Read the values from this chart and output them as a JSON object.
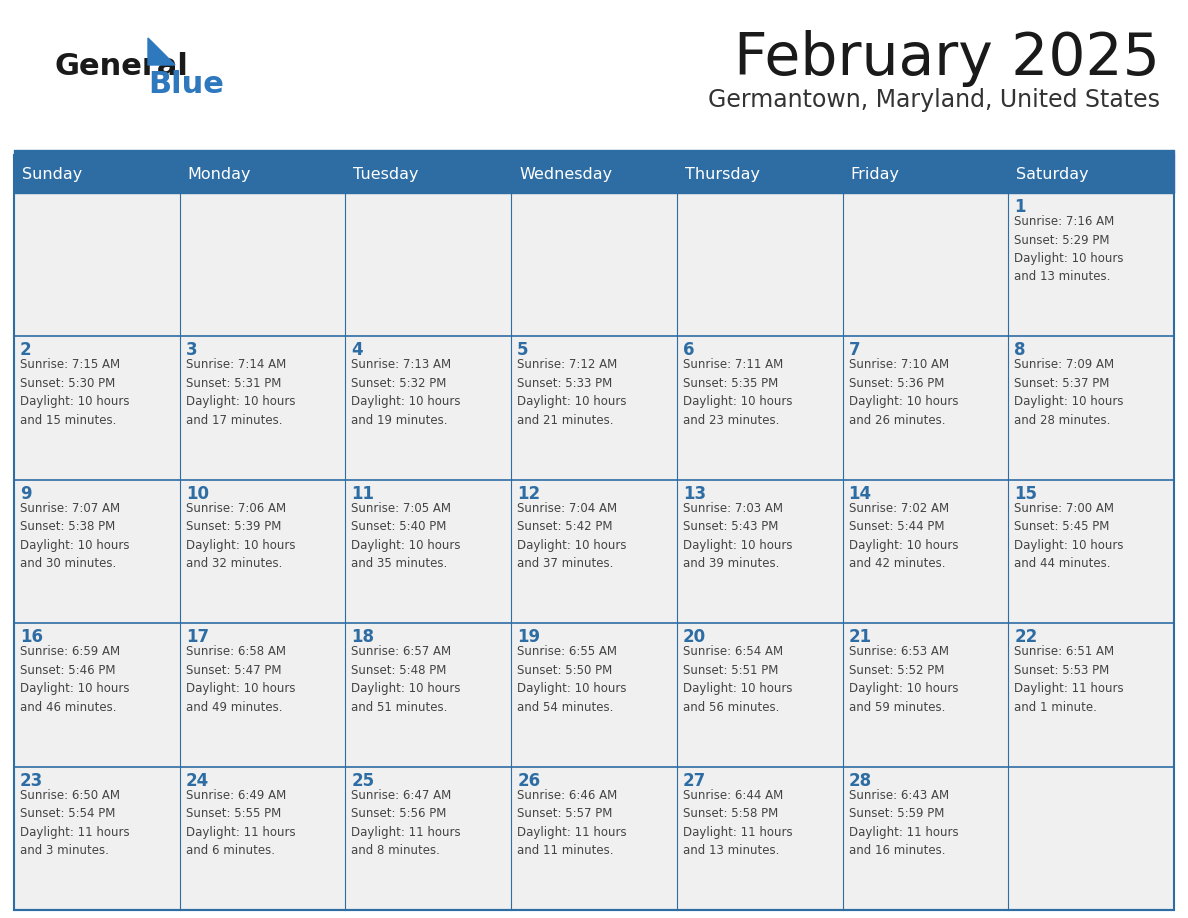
{
  "title": "February 2025",
  "subtitle": "Germantown, Maryland, United States",
  "header_bg": "#2E6DA4",
  "header_text_color": "#FFFFFF",
  "cell_bg": "#F0F0F0",
  "day_number_color": "#2E6DA4",
  "cell_text_color": "#444444",
  "border_color": "#2E6DA4",
  "days_of_week": [
    "Sunday",
    "Monday",
    "Tuesday",
    "Wednesday",
    "Thursday",
    "Friday",
    "Saturday"
  ],
  "title_color": "#1a1a1a",
  "subtitle_color": "#333333",
  "logo_general_color": "#1a1a1a",
  "logo_blue_color": "#2E78BE",
  "weeks": [
    [
      {
        "day": null,
        "info": null
      },
      {
        "day": null,
        "info": null
      },
      {
        "day": null,
        "info": null
      },
      {
        "day": null,
        "info": null
      },
      {
        "day": null,
        "info": null
      },
      {
        "day": null,
        "info": null
      },
      {
        "day": 1,
        "info": "Sunrise: 7:16 AM\nSunset: 5:29 PM\nDaylight: 10 hours\nand 13 minutes."
      }
    ],
    [
      {
        "day": 2,
        "info": "Sunrise: 7:15 AM\nSunset: 5:30 PM\nDaylight: 10 hours\nand 15 minutes."
      },
      {
        "day": 3,
        "info": "Sunrise: 7:14 AM\nSunset: 5:31 PM\nDaylight: 10 hours\nand 17 minutes."
      },
      {
        "day": 4,
        "info": "Sunrise: 7:13 AM\nSunset: 5:32 PM\nDaylight: 10 hours\nand 19 minutes."
      },
      {
        "day": 5,
        "info": "Sunrise: 7:12 AM\nSunset: 5:33 PM\nDaylight: 10 hours\nand 21 minutes."
      },
      {
        "day": 6,
        "info": "Sunrise: 7:11 AM\nSunset: 5:35 PM\nDaylight: 10 hours\nand 23 minutes."
      },
      {
        "day": 7,
        "info": "Sunrise: 7:10 AM\nSunset: 5:36 PM\nDaylight: 10 hours\nand 26 minutes."
      },
      {
        "day": 8,
        "info": "Sunrise: 7:09 AM\nSunset: 5:37 PM\nDaylight: 10 hours\nand 28 minutes."
      }
    ],
    [
      {
        "day": 9,
        "info": "Sunrise: 7:07 AM\nSunset: 5:38 PM\nDaylight: 10 hours\nand 30 minutes."
      },
      {
        "day": 10,
        "info": "Sunrise: 7:06 AM\nSunset: 5:39 PM\nDaylight: 10 hours\nand 32 minutes."
      },
      {
        "day": 11,
        "info": "Sunrise: 7:05 AM\nSunset: 5:40 PM\nDaylight: 10 hours\nand 35 minutes."
      },
      {
        "day": 12,
        "info": "Sunrise: 7:04 AM\nSunset: 5:42 PM\nDaylight: 10 hours\nand 37 minutes."
      },
      {
        "day": 13,
        "info": "Sunrise: 7:03 AM\nSunset: 5:43 PM\nDaylight: 10 hours\nand 39 minutes."
      },
      {
        "day": 14,
        "info": "Sunrise: 7:02 AM\nSunset: 5:44 PM\nDaylight: 10 hours\nand 42 minutes."
      },
      {
        "day": 15,
        "info": "Sunrise: 7:00 AM\nSunset: 5:45 PM\nDaylight: 10 hours\nand 44 minutes."
      }
    ],
    [
      {
        "day": 16,
        "info": "Sunrise: 6:59 AM\nSunset: 5:46 PM\nDaylight: 10 hours\nand 46 minutes."
      },
      {
        "day": 17,
        "info": "Sunrise: 6:58 AM\nSunset: 5:47 PM\nDaylight: 10 hours\nand 49 minutes."
      },
      {
        "day": 18,
        "info": "Sunrise: 6:57 AM\nSunset: 5:48 PM\nDaylight: 10 hours\nand 51 minutes."
      },
      {
        "day": 19,
        "info": "Sunrise: 6:55 AM\nSunset: 5:50 PM\nDaylight: 10 hours\nand 54 minutes."
      },
      {
        "day": 20,
        "info": "Sunrise: 6:54 AM\nSunset: 5:51 PM\nDaylight: 10 hours\nand 56 minutes."
      },
      {
        "day": 21,
        "info": "Sunrise: 6:53 AM\nSunset: 5:52 PM\nDaylight: 10 hours\nand 59 minutes."
      },
      {
        "day": 22,
        "info": "Sunrise: 6:51 AM\nSunset: 5:53 PM\nDaylight: 11 hours\nand 1 minute."
      }
    ],
    [
      {
        "day": 23,
        "info": "Sunrise: 6:50 AM\nSunset: 5:54 PM\nDaylight: 11 hours\nand 3 minutes."
      },
      {
        "day": 24,
        "info": "Sunrise: 6:49 AM\nSunset: 5:55 PM\nDaylight: 11 hours\nand 6 minutes."
      },
      {
        "day": 25,
        "info": "Sunrise: 6:47 AM\nSunset: 5:56 PM\nDaylight: 11 hours\nand 8 minutes."
      },
      {
        "day": 26,
        "info": "Sunrise: 6:46 AM\nSunset: 5:57 PM\nDaylight: 11 hours\nand 11 minutes."
      },
      {
        "day": 27,
        "info": "Sunrise: 6:44 AM\nSunset: 5:58 PM\nDaylight: 11 hours\nand 13 minutes."
      },
      {
        "day": 28,
        "info": "Sunrise: 6:43 AM\nSunset: 5:59 PM\nDaylight: 11 hours\nand 16 minutes."
      },
      {
        "day": null,
        "info": null
      }
    ]
  ]
}
